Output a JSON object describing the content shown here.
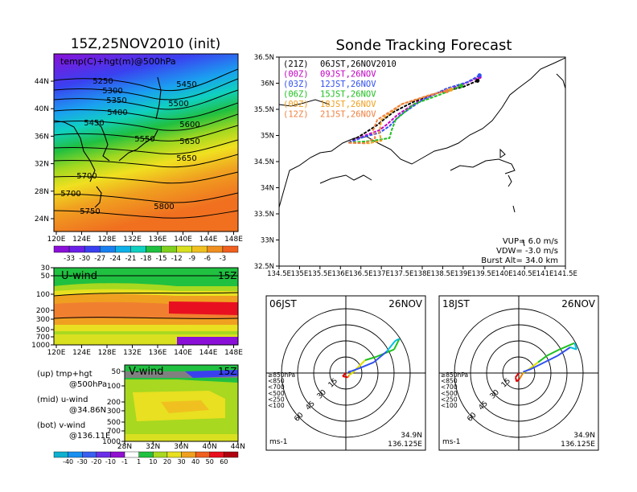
{
  "titles": {
    "left": "15Z,25NOV2010 (init)",
    "right": "Sonde Tracking Forecast"
  },
  "map500": {
    "label": "temp(C)+hgt(m)@500hPa",
    "lon_ticks": [
      "120E",
      "124E",
      "128E",
      "132E",
      "136E",
      "140E",
      "144E",
      "148E"
    ],
    "lat_ticks": [
      "44N",
      "40N",
      "36N",
      "32N",
      "28N",
      "24N"
    ],
    "contours": [
      "5250",
      "5300",
      "5350",
      "5400",
      "5450",
      "5450",
      "5500",
      "5550",
      "5600",
      "5650",
      "5650",
      "5700",
      "5700",
      "5750",
      "5800"
    ],
    "colorbar": [
      "-33",
      "-30",
      "-27",
      "-24",
      "-21",
      "-18",
      "-15",
      "-12",
      "-9",
      "-6",
      "-3"
    ]
  },
  "uwind": {
    "label": "U-wind",
    "time": "15Z",
    "y_ticks": [
      "30",
      "50",
      "100",
      "200",
      "300",
      "500",
      "700",
      "1000"
    ],
    "x_ticks": [
      "120E",
      "124E",
      "128E",
      "132E",
      "136E",
      "140E",
      "144E",
      "148E"
    ]
  },
  "vwind": {
    "label": "V-wind",
    "time": "15Z",
    "y_ticks": [
      "50",
      "100",
      "200",
      "300",
      "500",
      "700",
      "1000"
    ],
    "x_ticks": [
      "28N",
      "32N",
      "36N",
      "40N",
      "44N"
    ],
    "colorbar": [
      "-40",
      "-30",
      "-20",
      "-10",
      "-1",
      "1",
      "10",
      "20",
      "30",
      "40",
      "50",
      "60"
    ]
  },
  "legend_notes": [
    {
      "a": "(up) tmp+hgt",
      "b": "@500hPa"
    },
    {
      "a": "(mid) u-wind",
      "b": "@34.86N"
    },
    {
      "a": "(bot) v-wind",
      "b": "@136.11E"
    }
  ],
  "track": {
    "lon_ticks": [
      "134.5E",
      "135E",
      "135.5E",
      "136E",
      "136.5E",
      "137E",
      "137.5E",
      "138E",
      "138.5E",
      "139E",
      "139.5E",
      "140E",
      "140.5E",
      "141E",
      "141.5E"
    ],
    "lat_ticks": [
      "36.5N",
      "36N",
      "35.5N",
      "35N",
      "34.5N",
      "34N",
      "33.5N",
      "33N",
      "32.5N"
    ],
    "legend": [
      {
        "code": "(21Z)",
        "text": "06JST,26NOV2010",
        "color": "#000000"
      },
      {
        "code": "(00Z)",
        "text": "09JST,26NOV",
        "color": "#c000c0"
      },
      {
        "code": "(03Z)",
        "text": "12JST,26NOV",
        "color": "#3050f0"
      },
      {
        "code": "(06Z)",
        "text": "15JST,26NOV",
        "color": "#20c020"
      },
      {
        "code": "(09Z)",
        "text": "18JST,26NOV",
        "color": "#f0a020"
      },
      {
        "code": "(12Z)",
        "text": "21JST,26NOV",
        "color": "#f08040"
      }
    ],
    "params": [
      "VUP=  6.0  m/s",
      "VDW= -3.0  m/s",
      "Burst Alt=  34.0  km"
    ]
  },
  "hodo_left": {
    "time": "06JST",
    "date": "26NOV",
    "levels": [
      "≥850hPa",
      "<850",
      "<700",
      "<500",
      "<250",
      "<100"
    ],
    "level_colors": [
      "#e00000",
      "#f08000",
      "#e0e000",
      "#20c020",
      "#00c0e0",
      "#3050f0"
    ],
    "ring_labels": [
      "15",
      "30",
      "45",
      "60"
    ],
    "unit": "ms-1",
    "lat": "34.9N",
    "lon": "136.125E"
  },
  "hodo_right": {
    "time": "18JST",
    "date": "26NOV",
    "levels": [
      "≥850hPa",
      "<850",
      "<700",
      "<500",
      "<250",
      "<100"
    ],
    "level_colors": [
      "#e00000",
      "#f08000",
      "#e0e000",
      "#20c020",
      "#00c0e0",
      "#3050f0"
    ],
    "ring_labels": [
      "15",
      "30",
      "45",
      "60"
    ],
    "unit": "ms-1",
    "lat": "34.9N",
    "lon": "136.125E"
  }
}
